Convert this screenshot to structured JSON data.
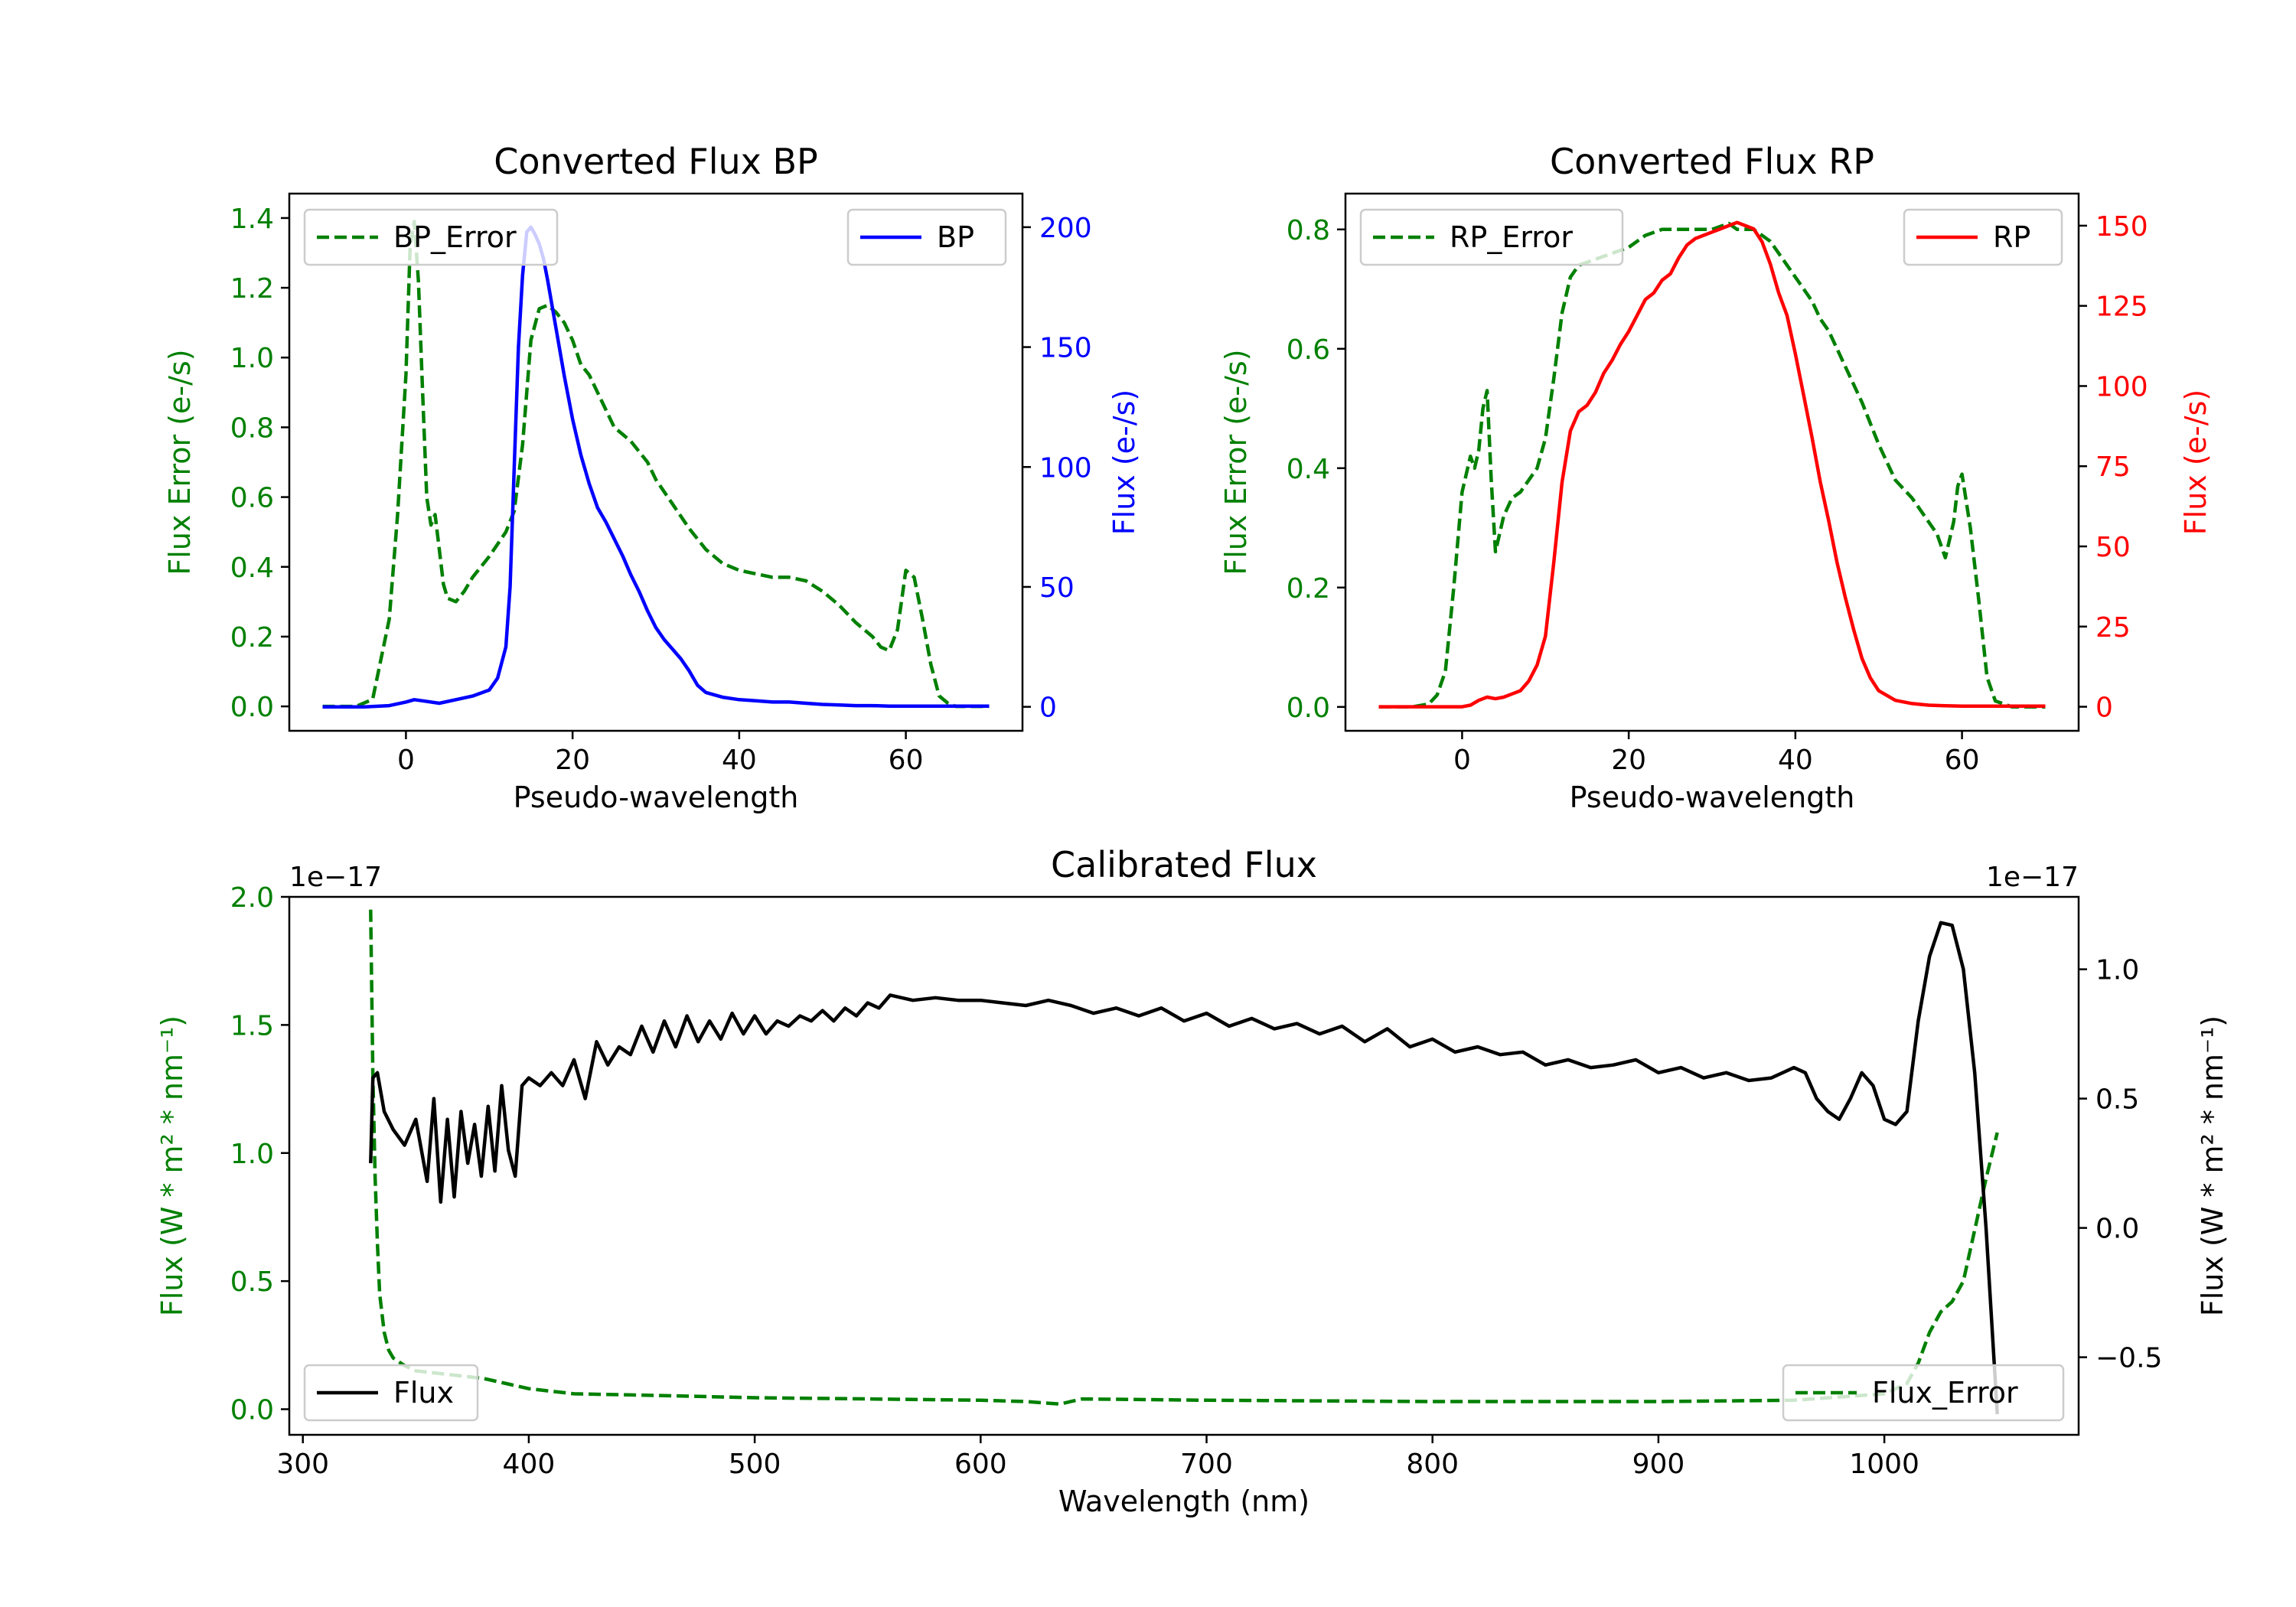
{
  "colors": {
    "error": "#008000",
    "bp": "#0000ff",
    "rp": "#ff0000",
    "flux": "#000000"
  },
  "chart_data": [
    {
      "id": "bp",
      "type": "line",
      "title": "Converted Flux BP",
      "xlabel": "Pseudo-wavelength",
      "ylabel_left": "Flux Error (e-/s)",
      "ylabel_right": "Flux (e-/s)",
      "xlim": [
        -14,
        74
      ],
      "ylim_left": [
        -0.07,
        1.47
      ],
      "ylim_right": [
        -10,
        214
      ],
      "xticks": [
        0,
        20,
        40,
        60
      ],
      "xtick_labels": [
        "0",
        "20",
        "40",
        "60"
      ],
      "yticks_left": [
        0.0,
        0.2,
        0.4,
        0.6,
        0.8,
        1.0,
        1.2,
        1.4
      ],
      "ytick_labels_left": [
        "0.0",
        "0.2",
        "0.4",
        "0.6",
        "0.8",
        "1.0",
        "1.2",
        "1.4"
      ],
      "yticks_right": [
        0,
        50,
        100,
        150,
        200
      ],
      "ytick_labels_right": [
        "0",
        "50",
        "100",
        "150",
        "200"
      ],
      "legend_left": {
        "label": "BP_Error",
        "position": "upper left"
      },
      "legend_right": {
        "label": "BP",
        "position": "upper right"
      },
      "series": [
        {
          "name": "BP_Error",
          "axis": "left",
          "style": "dashed",
          "color_key": "error",
          "x": [
            -10,
            -6,
            -4,
            -2,
            -1,
            0,
            0.5,
            1,
            1.5,
            2,
            2.5,
            3,
            3.5,
            4,
            4.5,
            5,
            6,
            7,
            8,
            10,
            12,
            13,
            14,
            15,
            16,
            17,
            18,
            19,
            20,
            21,
            22,
            23,
            24,
            25,
            26,
            27,
            28,
            29,
            30,
            32,
            34,
            36,
            38,
            40,
            42,
            44,
            46,
            48,
            50,
            52,
            54,
            56,
            57,
            58,
            59,
            60,
            61,
            62,
            63,
            64,
            65,
            66,
            70
          ],
          "y": [
            0.0,
            0.0,
            0.02,
            0.25,
            0.55,
            0.95,
            1.32,
            1.39,
            1.22,
            0.9,
            0.6,
            0.52,
            0.55,
            0.45,
            0.35,
            0.31,
            0.3,
            0.33,
            0.37,
            0.43,
            0.5,
            0.56,
            0.75,
            1.05,
            1.14,
            1.15,
            1.13,
            1.1,
            1.05,
            0.98,
            0.95,
            0.9,
            0.85,
            0.8,
            0.78,
            0.76,
            0.73,
            0.7,
            0.65,
            0.58,
            0.51,
            0.45,
            0.41,
            0.39,
            0.38,
            0.37,
            0.37,
            0.36,
            0.33,
            0.29,
            0.24,
            0.2,
            0.17,
            0.16,
            0.22,
            0.39,
            0.37,
            0.25,
            0.12,
            0.03,
            0.01,
            0.0,
            0.0
          ]
        },
        {
          "name": "BP",
          "axis": "right",
          "style": "solid",
          "color_key": "bp",
          "x": [
            -10,
            -5,
            -2,
            0,
            1,
            2,
            4,
            6,
            8,
            10,
            11,
            12,
            12.5,
            13,
            13.5,
            14,
            14.5,
            15,
            15.5,
            16,
            16.5,
            17,
            18,
            19,
            20,
            21,
            22,
            23,
            24,
            25,
            26,
            27,
            28,
            29,
            30,
            31,
            32,
            33,
            34,
            35,
            36,
            38,
            40,
            42,
            44,
            46,
            48,
            50,
            52,
            54,
            56,
            58,
            60,
            62,
            64,
            66,
            70
          ],
          "y": [
            0,
            0,
            0.5,
            2,
            3,
            2.5,
            1.5,
            3,
            4.5,
            7,
            12,
            25,
            50,
            100,
            150,
            180,
            198,
            200,
            197,
            193,
            187,
            178,
            158,
            138,
            120,
            105,
            93,
            83,
            77,
            70,
            63,
            55,
            48,
            40,
            33,
            28,
            24,
            20,
            15,
            9,
            6,
            4,
            3,
            2.5,
            2,
            2,
            1.5,
            1,
            0.8,
            0.5,
            0.5,
            0.3,
            0.3,
            0.3,
            0.3,
            0.3,
            0.3
          ]
        }
      ]
    },
    {
      "id": "rp",
      "type": "line",
      "title": "Converted Flux RP",
      "xlabel": "Pseudo-wavelength",
      "ylabel_left": "Flux Error (e-/s)",
      "ylabel_right": "Flux (e-/s)",
      "xlim": [
        -14,
        74
      ],
      "ylim_left": [
        -0.04,
        0.86
      ],
      "ylim_right": [
        -7.5,
        160
      ],
      "xticks": [
        0,
        20,
        40,
        60
      ],
      "xtick_labels": [
        "0",
        "20",
        "40",
        "60"
      ],
      "yticks_left": [
        0.0,
        0.2,
        0.4,
        0.6,
        0.8
      ],
      "ytick_labels_left": [
        "0.0",
        "0.2",
        "0.4",
        "0.6",
        "0.8"
      ],
      "yticks_right": [
        0,
        25,
        50,
        75,
        100,
        125,
        150
      ],
      "ytick_labels_right": [
        "0",
        "25",
        "50",
        "75",
        "100",
        "125",
        "150"
      ],
      "legend_left": {
        "label": "RP_Error",
        "position": "upper left"
      },
      "legend_right": {
        "label": "RP",
        "position": "upper right"
      },
      "series": [
        {
          "name": "RP_Error",
          "axis": "left",
          "style": "dashed",
          "color_key": "error",
          "x": [
            -10,
            -6,
            -4,
            -3,
            -2,
            -1,
            0,
            1,
            1.5,
            2,
            2.5,
            3,
            3.5,
            4,
            5,
            6,
            7,
            8,
            9,
            10,
            11,
            12,
            13,
            14,
            16,
            18,
            20,
            22,
            24,
            26,
            28,
            30,
            32,
            33,
            34,
            35,
            36,
            37,
            38,
            39,
            40,
            41,
            42,
            43,
            44,
            46,
            48,
            50,
            52,
            54,
            55,
            56,
            57,
            58,
            59,
            59.5,
            60,
            61,
            62,
            63,
            64,
            66,
            70
          ],
          "y": [
            0.0,
            0.0,
            0.005,
            0.02,
            0.06,
            0.2,
            0.36,
            0.42,
            0.4,
            0.43,
            0.5,
            0.53,
            0.38,
            0.26,
            0.32,
            0.35,
            0.36,
            0.38,
            0.4,
            0.45,
            0.55,
            0.66,
            0.72,
            0.74,
            0.75,
            0.76,
            0.77,
            0.79,
            0.8,
            0.8,
            0.8,
            0.8,
            0.81,
            0.8,
            0.8,
            0.8,
            0.79,
            0.78,
            0.76,
            0.74,
            0.72,
            0.7,
            0.68,
            0.65,
            0.63,
            0.57,
            0.51,
            0.44,
            0.38,
            0.35,
            0.33,
            0.31,
            0.29,
            0.25,
            0.31,
            0.37,
            0.39,
            0.3,
            0.18,
            0.05,
            0.01,
            0.0,
            0.0
          ]
        },
        {
          "name": "RP",
          "axis": "right",
          "style": "solid",
          "color_key": "rp",
          "x": [
            -10,
            -5,
            -2,
            0,
            1,
            2,
            3,
            4,
            5,
            6,
            7,
            8,
            9,
            10,
            11,
            12,
            13,
            14,
            15,
            16,
            17,
            18,
            19,
            20,
            21,
            22,
            23,
            24,
            25,
            26,
            27,
            28,
            29,
            30,
            31,
            32,
            33,
            34,
            35,
            36,
            37,
            38,
            39,
            40,
            41,
            42,
            43,
            44,
            45,
            46,
            47,
            48,
            49,
            50,
            52,
            54,
            56,
            58,
            60,
            62,
            64,
            70
          ],
          "y": [
            0,
            0,
            0,
            0,
            0.5,
            2,
            3,
            2.5,
            3,
            4,
            5,
            8,
            13,
            22,
            45,
            70,
            86,
            92,
            94,
            98,
            104,
            108,
            113,
            117,
            122,
            127,
            129,
            133,
            135,
            140,
            144,
            146,
            147,
            148,
            149,
            150,
            151,
            150,
            149,
            145,
            138,
            129,
            122,
            110,
            97,
            84,
            70,
            58,
            45,
            34,
            24,
            15,
            9,
            5,
            2,
            1,
            0.5,
            0.3,
            0.2,
            0.2,
            0.2,
            0.2
          ]
        }
      ]
    },
    {
      "id": "cal",
      "type": "line",
      "title": "Calibrated Flux",
      "xlabel": "Wavelength (nm)",
      "ylabel_left": "Flux (W * m² * nm⁻¹)",
      "ylabel_right": "Flux (W * m² * nm⁻¹)",
      "offset_left": "1e−17",
      "offset_right": "1e−17",
      "xlim": [
        294,
        1086
      ],
      "ylim_left": [
        -0.1,
        2.0
      ],
      "ylim_right": [
        -0.8,
        1.28
      ],
      "xticks": [
        300,
        400,
        500,
        600,
        700,
        800,
        900,
        1000
      ],
      "xtick_labels": [
        "300",
        "400",
        "500",
        "600",
        "700",
        "800",
        "900",
        "1000"
      ],
      "yticks_left": [
        0.0,
        0.5,
        1.0,
        1.5,
        2.0
      ],
      "ytick_labels_left": [
        "0.0",
        "0.5",
        "1.0",
        "1.5",
        "2.0"
      ],
      "yticks_right": [
        -0.5,
        0.0,
        0.5,
        1.0
      ],
      "ytick_labels_right": [
        "−0.5",
        "0.0",
        "0.5",
        "1.0"
      ],
      "legend_left": {
        "label": "Flux",
        "position": "lower left"
      },
      "legend_right": {
        "label": "Flux_Error",
        "position": "lower right"
      },
      "series": [
        {
          "name": "Flux_Error",
          "axis": "left",
          "style": "dashed",
          "color_key": "error",
          "x": [
            330,
            331,
            332,
            333,
            334,
            336,
            338,
            340,
            345,
            350,
            360,
            370,
            380,
            390,
            400,
            420,
            450,
            500,
            550,
            600,
            620,
            635,
            645,
            700,
            800,
            900,
            960,
            1000,
            1010,
            1015,
            1020,
            1025,
            1030,
            1035,
            1040,
            1045,
            1050
          ],
          "y": [
            1.95,
            1.3,
            0.9,
            0.65,
            0.45,
            0.3,
            0.23,
            0.2,
            0.17,
            0.15,
            0.14,
            0.13,
            0.12,
            0.1,
            0.08,
            0.06,
            0.055,
            0.045,
            0.04,
            0.035,
            0.03,
            0.02,
            0.04,
            0.035,
            0.03,
            0.03,
            0.035,
            0.06,
            0.1,
            0.18,
            0.3,
            0.38,
            0.42,
            0.5,
            0.7,
            0.9,
            1.08
          ]
        },
        {
          "name": "Flux",
          "axis": "right",
          "style": "solid",
          "color_key": "flux",
          "x": [
            330,
            331,
            333,
            336,
            340,
            345,
            350,
            355,
            358,
            361,
            364,
            367,
            370,
            373,
            376,
            379,
            382,
            385,
            388,
            391,
            394,
            397,
            400,
            405,
            410,
            415,
            420,
            425,
            430,
            435,
            440,
            445,
            450,
            455,
            460,
            465,
            470,
            475,
            480,
            485,
            490,
            495,
            500,
            505,
            510,
            515,
            520,
            525,
            530,
            535,
            540,
            545,
            550,
            555,
            560,
            570,
            580,
            590,
            600,
            610,
            620,
            630,
            640,
            650,
            660,
            670,
            680,
            690,
            700,
            710,
            720,
            730,
            740,
            750,
            760,
            770,
            780,
            790,
            800,
            810,
            820,
            830,
            840,
            850,
            860,
            870,
            880,
            890,
            900,
            910,
            920,
            930,
            940,
            950,
            960,
            965,
            970,
            975,
            980,
            985,
            990,
            995,
            1000,
            1005,
            1010,
            1015,
            1020,
            1025,
            1030,
            1035,
            1040,
            1045,
            1050
          ],
          "y": [
            0.25,
            0.58,
            0.6,
            0.45,
            0.38,
            0.32,
            0.42,
            0.18,
            0.5,
            0.1,
            0.42,
            0.12,
            0.45,
            0.25,
            0.4,
            0.2,
            0.47,
            0.22,
            0.55,
            0.3,
            0.2,
            0.55,
            0.58,
            0.55,
            0.6,
            0.55,
            0.65,
            0.5,
            0.72,
            0.63,
            0.7,
            0.67,
            0.78,
            0.68,
            0.8,
            0.7,
            0.82,
            0.72,
            0.8,
            0.73,
            0.83,
            0.75,
            0.82,
            0.75,
            0.8,
            0.78,
            0.82,
            0.8,
            0.84,
            0.8,
            0.85,
            0.82,
            0.87,
            0.85,
            0.9,
            0.88,
            0.89,
            0.88,
            0.88,
            0.87,
            0.86,
            0.88,
            0.86,
            0.83,
            0.85,
            0.82,
            0.85,
            0.8,
            0.83,
            0.78,
            0.81,
            0.77,
            0.79,
            0.75,
            0.78,
            0.72,
            0.77,
            0.7,
            0.73,
            0.68,
            0.7,
            0.67,
            0.68,
            0.63,
            0.65,
            0.62,
            0.63,
            0.65,
            0.6,
            0.62,
            0.58,
            0.6,
            0.57,
            0.58,
            0.62,
            0.6,
            0.5,
            0.45,
            0.42,
            0.5,
            0.6,
            0.55,
            0.42,
            0.4,
            0.45,
            0.8,
            1.05,
            1.18,
            1.17,
            1.0,
            0.6,
            0.0,
            -0.72
          ]
        }
      ]
    }
  ]
}
